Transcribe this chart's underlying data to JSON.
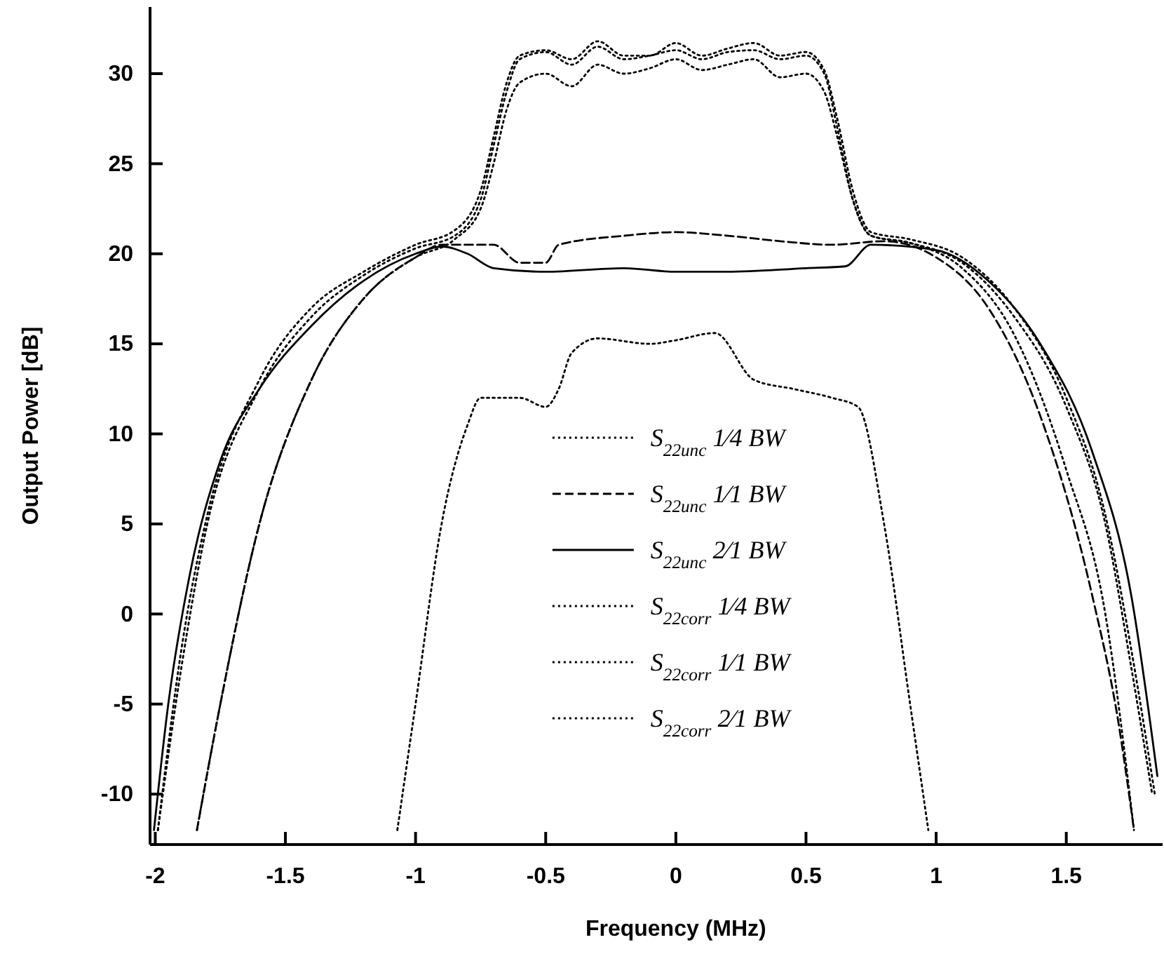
{
  "chart_data": {
    "type": "line",
    "xlabel": "Frequency (MHz)",
    "ylabel": "Output Power [dB]",
    "xlim": [
      -2.02,
      1.87
    ],
    "xticks": [
      -2,
      -1.5,
      -1,
      -0.5,
      0,
      0.5,
      1,
      1.5
    ],
    "ylim": [
      -12.8,
      33.7
    ],
    "yticks": [
      -10,
      -5,
      0,
      5,
      10,
      15,
      20,
      25,
      30
    ],
    "grid": false,
    "legend": "bottom",
    "series": [
      {
        "name": "S$_{22unc}$ 1⁄4 BW",
        "color": "#000000",
        "line_style": "dotted",
        "x": [
          -1.07,
          -1.0,
          -0.9,
          -0.8,
          -0.75,
          -0.6,
          -0.5,
          -0.45,
          -0.4,
          -0.3,
          -0.1,
          0,
          0.15,
          0.3,
          0.45,
          0.6,
          0.7,
          0.8,
          0.9,
          0.97
        ],
        "values": [
          -12,
          -5,
          5,
          10.5,
          12,
          12,
          11.5,
          12.5,
          14.5,
          15.3,
          15,
          15.2,
          15.6,
          13,
          12.5,
          12,
          11.5,
          5,
          -5,
          -12
        ]
      },
      {
        "name": "S$_{22unc}$ 1⁄1 BW",
        "color": "#000000",
        "line_style": "dashed",
        "x": [
          -1.84,
          -1.75,
          -1.6,
          -1.4,
          -1.2,
          -1.0,
          -0.9,
          -0.7,
          -0.6,
          -0.5,
          -0.45,
          -0.2,
          0,
          0.2,
          0.4,
          0.6,
          0.8,
          1.0,
          1.2,
          1.4,
          1.6,
          1.7,
          1.76
        ],
        "values": [
          -12,
          -5,
          5,
          13,
          17.5,
          19.8,
          20.5,
          20.5,
          19.5,
          19.5,
          20.5,
          21,
          21.2,
          21,
          20.7,
          20.5,
          20.7,
          19.8,
          17,
          11,
          1,
          -6,
          -12
        ]
      },
      {
        "name": "S$_{22unc}$ 2⁄1 BW",
        "color": "#000000",
        "line_style": "solid",
        "x": [
          -2.005,
          -1.95,
          -1.87,
          -1.75,
          -1.6,
          -1.4,
          -1.2,
          -1.0,
          -0.9,
          -0.8,
          -0.7,
          -0.5,
          -0.2,
          0,
          0.2,
          0.5,
          0.65,
          0.75,
          1.0,
          1.2,
          1.4,
          1.6,
          1.75,
          1.85
        ],
        "values": [
          -12,
          -5,
          2,
          8.5,
          12.5,
          16,
          18.5,
          20,
          20.4,
          20,
          19.2,
          19,
          19.2,
          19,
          19,
          19.2,
          19.3,
          20.5,
          20.2,
          18.5,
          15,
          9,
          1,
          -9
        ]
      },
      {
        "name": "S$_{22corr}$ 1⁄4 BW",
        "color": "#000000",
        "line_style": "dotted",
        "x": [
          -1.84,
          -1.75,
          -1.6,
          -1.4,
          -1.2,
          -1.0,
          -0.85,
          -0.75,
          -0.7,
          -0.65,
          -0.6,
          -0.5,
          -0.4,
          -0.3,
          -0.2,
          -0.1,
          0,
          0.1,
          0.2,
          0.3,
          0.4,
          0.5,
          0.57,
          0.62,
          0.68,
          0.75,
          0.9,
          1.1,
          1.3,
          1.5,
          1.65,
          1.76
        ],
        "values": [
          -12,
          -5,
          5,
          13,
          17.5,
          19.8,
          20.8,
          22.5,
          25,
          28,
          29.5,
          30,
          29.3,
          30.5,
          30,
          30.3,
          30.8,
          30.2,
          30.5,
          30.8,
          29.8,
          30,
          29,
          26.5,
          23,
          21,
          20.6,
          19.2,
          15.5,
          8,
          0,
          -12
        ]
      },
      {
        "name": "S$_{22corr}$ 1⁄1 BW",
        "color": "#000000",
        "line_style": "dotted",
        "x": [
          -1.99,
          -1.9,
          -1.8,
          -1.6,
          -1.4,
          -1.2,
          -1.0,
          -0.85,
          -0.75,
          -0.7,
          -0.65,
          -0.6,
          -0.5,
          -0.4,
          -0.3,
          -0.2,
          -0.1,
          0,
          0.1,
          0.2,
          0.3,
          0.4,
          0.5,
          0.57,
          0.62,
          0.68,
          0.75,
          0.9,
          1.1,
          1.3,
          1.5,
          1.65,
          1.75,
          1.83
        ],
        "values": [
          -12,
          -3,
          5,
          12.5,
          16.5,
          18.8,
          20.3,
          21,
          23,
          26,
          29,
          30.8,
          31.2,
          30.5,
          31.5,
          30.8,
          31,
          31.3,
          30.8,
          31.2,
          31.3,
          30.8,
          31,
          30,
          27,
          23,
          21,
          20.6,
          19.5,
          16.5,
          11.5,
          5,
          -3,
          -10
        ]
      },
      {
        "name": "S$_{22corr}$ 2⁄1 BW",
        "color": "#000000",
        "line_style": "dotted",
        "x": [
          -1.99,
          -1.9,
          -1.8,
          -1.6,
          -1.4,
          -1.2,
          -1.0,
          -0.85,
          -0.75,
          -0.7,
          -0.65,
          -0.6,
          -0.5,
          -0.4,
          -0.3,
          -0.2,
          -0.1,
          0,
          0.1,
          0.2,
          0.3,
          0.4,
          0.5,
          0.57,
          0.62,
          0.68,
          0.75,
          0.9,
          1.1,
          1.3,
          1.5,
          1.65,
          1.75,
          1.84
        ],
        "values": [
          -12,
          -2,
          5.5,
          13,
          17,
          19,
          20.5,
          21.3,
          23.5,
          26.5,
          29.5,
          31,
          31.3,
          30.8,
          31.8,
          31,
          31,
          31.7,
          31,
          31.4,
          31.7,
          31,
          31.2,
          30.2,
          27.5,
          23.5,
          21.2,
          20.8,
          19.8,
          17,
          12,
          5.5,
          -2,
          -10
        ]
      }
    ]
  }
}
